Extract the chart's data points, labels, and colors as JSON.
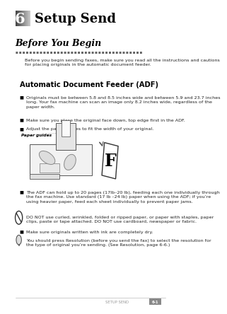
{
  "bg_color": "#ffffff",
  "header_number": "6",
  "header_title": "Setup Send",
  "section_title": "Before You Begin",
  "intro_text": "Before you begin sending faxes, make sure you read all the instructions and cautions\nfor placing originals in the automatic document feeder.",
  "adf_title": "Automatic Document Feeder (ADF)",
  "bullet_char": "■",
  "bullet1": "Originals must be between 5.8 and 8.5 inches wide and between 5.9 and 23.7 inches\nlong. Your fax machine can scan an image only 8.2 inches wide, regardless of the\npaper width.",
  "bullet2_pre": "Make sure you place the original ",
  "bullet2_bold": "face down, top edge first",
  "bullet2_post": " in the ADF.",
  "bullet3": "Adjust the paper guides to fit the width of your original.",
  "paper_guides_label": "Paper guides",
  "bullet4": "The ADF can hold up to 20 pages (17lb–20 lb), feeding each one individually through\nthe fax machine. Use standard (17 lb –24 lb) paper when using the ADF; if you’re\nusing heavier paper, feed each sheet individually to prevent paper jams.",
  "donot_full": "DO NOT use curled, wrinkled, folded or ripped paper, or paper with staples, paper\nclips, paste or tape attached. DO NOT use cardboard, newspaper or fabric.",
  "bullet5": "Make sure originals written with ink are completely dry.",
  "tip_pre": "You should press ",
  "tip_bold": "Resolution",
  "tip_post": " (before you send the fax) to select the resolution for\nthe type of original you’re sending. (See Resolution, page 6-6.)",
  "footer_text": "SETUP SEND",
  "footer_page": "6-1",
  "text_color": "#222222",
  "gray_color": "#666666"
}
